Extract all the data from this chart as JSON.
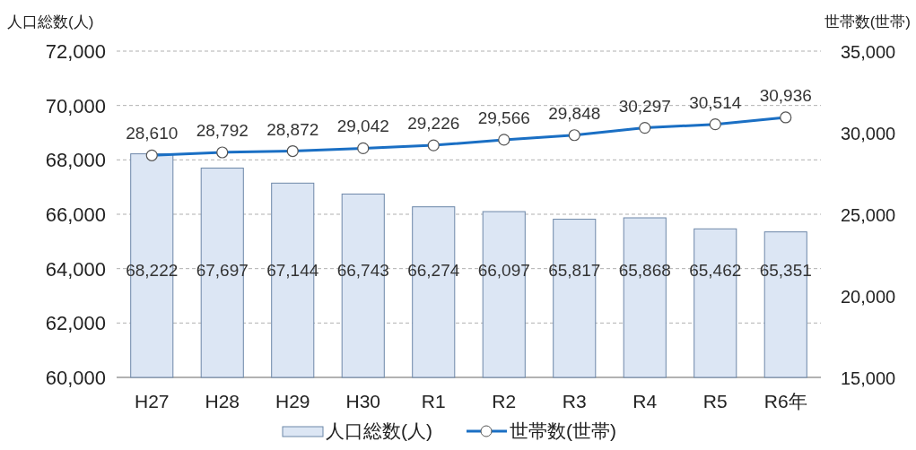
{
  "chart_data": {
    "type": "bar",
    "ylabel": "人口総数(人)",
    "y2label": "世帯数(世帯)",
    "categories": [
      "H27",
      "H28",
      "H29",
      "H30",
      "R1",
      "R2",
      "R3",
      "R4",
      "R5",
      "R6年"
    ],
    "series": [
      {
        "name": "人口総数(人)",
        "color": "#dce6f4",
        "values": [
          68222,
          67697,
          67144,
          66743,
          66274,
          66097,
          65817,
          65868,
          65462,
          65351
        ],
        "value_labels": [
          "68,222",
          "67,697",
          "67,144",
          "66,743",
          "66,274",
          "66,097",
          "65,817",
          "65,868",
          "65,462",
          "65,351"
        ]
      },
      {
        "name": "世帯数(世帯)",
        "type": "line",
        "axis": "y2",
        "color": "#1a6fc4",
        "values": [
          28610,
          28792,
          28872,
          29042,
          29226,
          29566,
          29848,
          30297,
          30514,
          30936
        ],
        "value_labels": [
          "28,610",
          "28,792",
          "28,872",
          "29,042",
          "29,226",
          "29,566",
          "29,848",
          "30,297",
          "30,514",
          "30,936"
        ]
      }
    ],
    "ylim": [
      60000,
      72000
    ],
    "yticks": [
      {
        "value": 60000,
        "label": "60,000"
      },
      {
        "value": 62000,
        "label": "62,000"
      },
      {
        "value": 64000,
        "label": "64,000"
      },
      {
        "value": 66000,
        "label": "66,000"
      },
      {
        "value": 68000,
        "label": "68,000"
      },
      {
        "value": 70000,
        "label": "70,000"
      },
      {
        "value": 72000,
        "label": "72,000"
      }
    ],
    "y2lim": [
      15000,
      35000
    ],
    "y2ticks": [
      {
        "value": 15000,
        "label": "15,000"
      },
      {
        "value": 20000,
        "label": "20,000"
      },
      {
        "value": 25000,
        "label": "25,000"
      },
      {
        "value": 30000,
        "label": "30,000"
      },
      {
        "value": 35000,
        "label": "35,000"
      }
    ],
    "grid": "y",
    "legend": "bottom",
    "marker": "circle",
    "line_style": "solid"
  }
}
